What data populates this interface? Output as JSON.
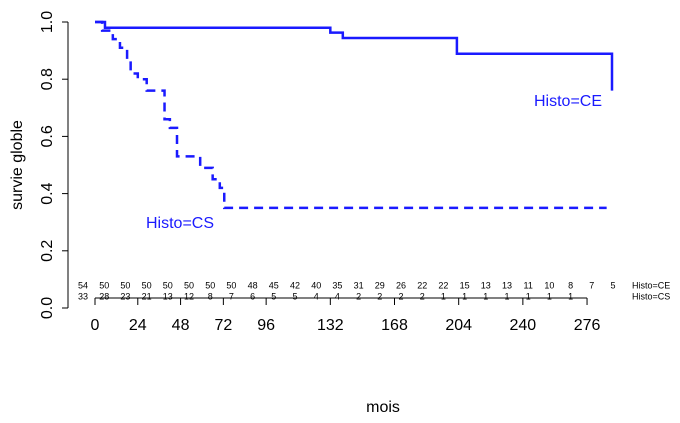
{
  "chart_data": {
    "type": "step",
    "x_label": "mois",
    "y_label": "survie globle",
    "xlim": [
      0,
      290
    ],
    "ylim": [
      0,
      1
    ],
    "xticks": [
      0,
      24,
      48,
      72,
      96,
      132,
      168,
      204,
      240,
      276
    ],
    "yticks": [
      {
        "value": 0,
        "label": "0.0"
      },
      {
        "value": 0.2,
        "label": "0.2"
      },
      {
        "value": 0.4,
        "label": "0.4"
      },
      {
        "value": 0.6,
        "label": "0.6"
      },
      {
        "value": 0.8,
        "label": "0.8"
      },
      {
        "value": 1,
        "label": "1.0"
      }
    ],
    "series": [
      {
        "name": "Histo=CE",
        "color": "#1a1aff",
        "dash": false,
        "x": [
          0,
          5.6,
          132,
          139,
          203,
          290
        ],
        "values": [
          1,
          0.98,
          0.963,
          0.944,
          0.889,
          0.76
        ],
        "risk": [
          54,
          50,
          50,
          50,
          50,
          50,
          50,
          50,
          48,
          45,
          42,
          40,
          35,
          31,
          29,
          26,
          22,
          22,
          15,
          13,
          13,
          11,
          10,
          8,
          7,
          5
        ]
      },
      {
        "name": "Histo=CS",
        "color": "#1a1aff",
        "dash": true,
        "x": [
          0,
          4,
          10,
          14,
          18,
          20,
          24,
          29,
          39,
          42,
          46,
          59,
          66,
          70,
          72.5,
          287
        ],
        "values": [
          1,
          0.97,
          0.94,
          0.91,
          0.87,
          0.82,
          0.8,
          0.76,
          0.66,
          0.63,
          0.53,
          0.49,
          0.45,
          0.42,
          0.35,
          0.35
        ],
        "risk": [
          33,
          28,
          23,
          21,
          13,
          12,
          8,
          7,
          6,
          5,
          5,
          4,
          4,
          2,
          2,
          2,
          2,
          1,
          1,
          1,
          1,
          1,
          1,
          1
        ]
      }
    ]
  }
}
